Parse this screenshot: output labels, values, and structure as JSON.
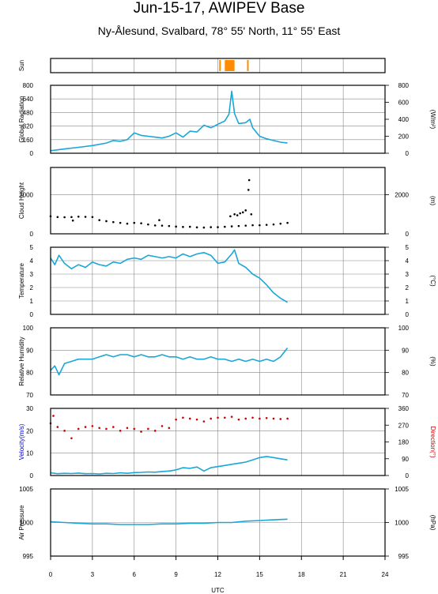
{
  "title": "Jun-15-17, AWIPEV Base",
  "subtitle": "Ny-Ålesund, Svalbard, 78° 55' North, 11° 55' East",
  "chart_data": {
    "type": "line",
    "x_axis": {
      "label": "UTC",
      "range": [
        0,
        24
      ],
      "ticks": [
        "0",
        "3",
        "6",
        "9",
        "12",
        "15",
        "18",
        "21",
        "24"
      ]
    },
    "panels": [
      {
        "id": "sun",
        "left_label": "Sun",
        "right_label": "",
        "sun_intervals": [
          [
            12.1,
            12.2
          ],
          [
            12.5,
            13.2
          ],
          [
            14.1,
            14.2
          ]
        ],
        "color": "#ff8c00"
      },
      {
        "id": "global-radiation",
        "left_label": "Global Radiation",
        "right_label": "(W/m²)",
        "ylim": [
          0,
          800
        ],
        "left_ticks": [
          "0",
          "160",
          "320",
          "480",
          "640",
          "800"
        ],
        "right_ticks": [
          "0",
          "200",
          "400",
          "600",
          "800"
        ],
        "series": [
          {
            "color": "#1aa7d8",
            "x": [
              0,
              1,
              2,
              3,
              4,
              4.5,
              5,
              5.5,
              6,
              6.5,
              7,
              7.5,
              8,
              8.5,
              9,
              9.5,
              10,
              10.5,
              11,
              11.5,
              12,
              12.5,
              12.8,
              13,
              13.2,
              13.5,
              14,
              14.3,
              14.5,
              15,
              15.5,
              16,
              16.5,
              17
            ],
            "y": [
              30,
              50,
              70,
              90,
              120,
              150,
              140,
              160,
              240,
              210,
              200,
              190,
              180,
              200,
              240,
              190,
              260,
              250,
              330,
              300,
              340,
              380,
              460,
              730,
              470,
              350,
              360,
              400,
              300,
              200,
              170,
              150,
              130,
              120
            ]
          }
        ]
      },
      {
        "id": "cloud-height",
        "left_label": "Cloud Height",
        "right_label": "(m)",
        "ylim": [
          0,
          3400
        ],
        "left_ticks": [
          "0",
          "2000"
        ],
        "right_ticks": [
          "0",
          "2000"
        ],
        "series": [
          {
            "color": "#000000",
            "style": "dots",
            "x": [
              0,
              0.5,
              1,
              1.5,
              2,
              2.5,
              3,
              3.5,
              4,
              4.5,
              5,
              5.5,
              6,
              6.5,
              7,
              7.5,
              8,
              8.5,
              9,
              9.5,
              10,
              10.5,
              11,
              11.5,
              12,
              12.5,
              13,
              13.5,
              14,
              14.5,
              15,
              15.5,
              16,
              16.5,
              17
            ],
            "y": [
              900,
              860,
              850,
              860,
              880,
              870,
              860,
              700,
              650,
              600,
              560,
              520,
              560,
              540,
              480,
              430,
              420,
              400,
              370,
              350,
              360,
              330,
              320,
              340,
              340,
              360,
              380,
              400,
              420,
              440,
              440,
              460,
              480,
              520,
              560
            ]
          },
          {
            "color": "#000000",
            "style": "dots",
            "x": [
              1.6,
              7.8,
              12.9,
              13.2,
              13.4,
              13.6,
              13.8,
              14.0,
              14.2,
              14.25,
              14.4
            ],
            "y": [
              680,
              700,
              900,
              1000,
              950,
              1050,
              1100,
              1200,
              2250,
              2750,
              1000
            ]
          }
        ]
      },
      {
        "id": "temperature",
        "left_label": "Temperature",
        "right_label": "(°C)",
        "ylim": [
          0,
          5
        ],
        "left_ticks": [
          "0",
          "1",
          "2",
          "3",
          "4",
          "5"
        ],
        "right_ticks": [
          "0",
          "1",
          "2",
          "3",
          "4",
          "5"
        ],
        "series": [
          {
            "color": "#1aa7d8",
            "x": [
              0,
              0.3,
              0.6,
              1,
              1.5,
              2,
              2.5,
              3,
              3.5,
              4,
              4.5,
              5,
              5.5,
              6,
              6.5,
              7,
              7.5,
              8,
              8.5,
              9,
              9.5,
              10,
              10.5,
              11,
              11.5,
              12,
              12.5,
              13,
              13.2,
              13.5,
              14,
              14.5,
              15,
              15.5,
              16,
              16.5,
              17
            ],
            "y": [
              4.2,
              3.7,
              4.4,
              3.8,
              3.4,
              3.7,
              3.5,
              3.9,
              3.7,
              3.6,
              3.9,
              3.8,
              4.1,
              4.2,
              4.1,
              4.4,
              4.3,
              4.2,
              4.3,
              4.2,
              4.5,
              4.3,
              4.5,
              4.6,
              4.4,
              3.8,
              3.9,
              4.5,
              4.8,
              3.8,
              3.5,
              3.0,
              2.7,
              2.2,
              1.6,
              1.2,
              0.9
            ]
          }
        ]
      },
      {
        "id": "relative-humidity",
        "left_label": "Relative Humidity",
        "right_label": "(%)",
        "ylim": [
          70,
          100
        ],
        "left_ticks": [
          "70",
          "80",
          "90",
          "100"
        ],
        "right_ticks": [
          "70",
          "80",
          "90",
          "100"
        ],
        "series": [
          {
            "color": "#1aa7d8",
            "x": [
              0,
              0.3,
              0.6,
              1,
              1.5,
              2,
              2.5,
              3,
              3.5,
              4,
              4.5,
              5,
              5.5,
              6,
              6.5,
              7,
              7.5,
              8,
              8.5,
              9,
              9.5,
              10,
              10.5,
              11,
              11.5,
              12,
              12.5,
              13,
              13.5,
              14,
              14.5,
              15,
              15.5,
              16,
              16.5,
              17
            ],
            "y": [
              81,
              83,
              79,
              84,
              85,
              86,
              86,
              86,
              87,
              88,
              87,
              88,
              88,
              87,
              88,
              87,
              87,
              88,
              87,
              87,
              86,
              87,
              86,
              86,
              87,
              86,
              86,
              85,
              86,
              85,
              86,
              85,
              86,
              85,
              87,
              91
            ]
          }
        ]
      },
      {
        "id": "wind",
        "left_label": "Velocity(m/s)",
        "right_label": "Direction(°)",
        "left_color": "#0000cc",
        "right_color": "#cc0000",
        "ylim": [
          0,
          30
        ],
        "right_ylim": [
          0,
          360
        ],
        "left_ticks": [
          "0",
          "10",
          "20",
          "30"
        ],
        "right_ticks": [
          "0",
          "90",
          "180",
          "270",
          "360"
        ],
        "series": [
          {
            "name": "Velocity",
            "color": "#1aa7d8",
            "axis": "left",
            "x": [
              0,
              0.5,
              1,
              1.5,
              2,
              2.5,
              3,
              3.5,
              4,
              4.5,
              5,
              5.5,
              6,
              6.5,
              7,
              7.5,
              8,
              8.5,
              9,
              9.5,
              10,
              10.5,
              11,
              11.5,
              12,
              12.5,
              13,
              13.5,
              14,
              14.5,
              15,
              15.5,
              16,
              16.5,
              17
            ],
            "y": [
              1.2,
              0.8,
              1.0,
              0.9,
              1.1,
              0.8,
              0.9,
              0.7,
              1.0,
              0.9,
              1.2,
              1.0,
              1.3,
              1.4,
              1.6,
              1.5,
              1.8,
              2.0,
              2.5,
              3.5,
              3.2,
              3.8,
              2.0,
              3.5,
              4.0,
              4.5,
              5.0,
              5.5,
              6.0,
              7.0,
              8.0,
              8.5,
              8.0,
              7.5,
              7.0
            ]
          },
          {
            "name": "Direction",
            "color": "#cc0000",
            "axis": "right",
            "style": "dots",
            "x": [
              0,
              0.2,
              0.5,
              1,
              1.5,
              2,
              2.5,
              3,
              3.5,
              4,
              4.5,
              5,
              5.5,
              6,
              6.5,
              7,
              7.5,
              8,
              8.5,
              9,
              9.5,
              10,
              10.5,
              11,
              11.5,
              12,
              12.5,
              13,
              13.5,
              14,
              14.5,
              15,
              15.5,
              16,
              16.5,
              17
            ],
            "y": [
              280,
              320,
              260,
              240,
              200,
              250,
              260,
              265,
              255,
              250,
              260,
              240,
              255,
              250,
              235,
              250,
              240,
              265,
              255,
              300,
              310,
              305,
              300,
              290,
              305,
              310,
              310,
              315,
              300,
              305,
              310,
              305,
              308,
              305,
              303,
              305
            ]
          }
        ]
      },
      {
        "id": "air-pressure",
        "left_label": "Air Pressure",
        "right_label": "(hPa)",
        "ylim": [
          995,
          1005
        ],
        "left_ticks": [
          "995",
          "1000",
          "1005"
        ],
        "right_ticks": [
          "995",
          "1000",
          "1005"
        ],
        "series": [
          {
            "color": "#1aa7d8",
            "x": [
              0,
              1,
              2,
              3,
              4,
              5,
              6,
              7,
              8,
              9,
              10,
              11,
              12,
              13,
              14,
              15,
              16,
              17
            ],
            "y": [
              1000.1,
              1000.0,
              999.9,
              999.8,
              999.8,
              999.7,
              999.7,
              999.7,
              999.8,
              999.8,
              999.9,
              999.9,
              1000.0,
              1000.0,
              1000.2,
              1000.3,
              1000.4,
              1000.5
            ]
          }
        ]
      }
    ]
  }
}
